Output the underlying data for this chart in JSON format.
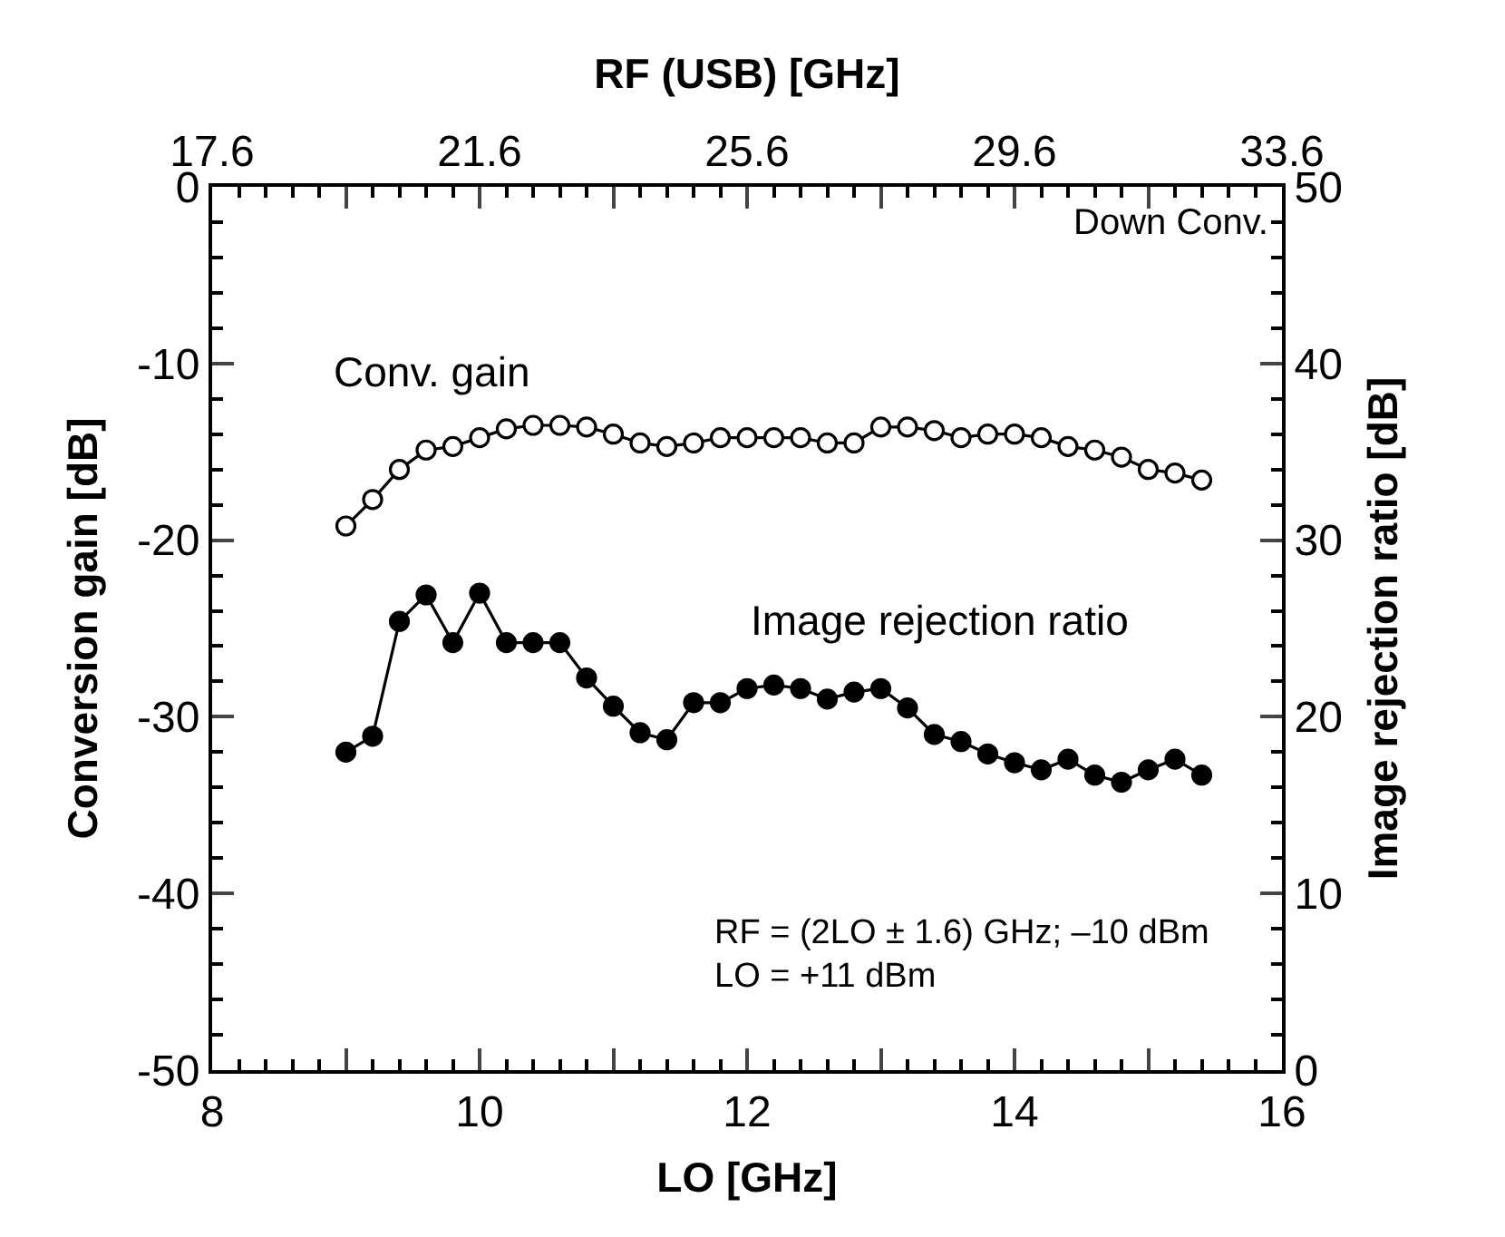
{
  "chart_data": {
    "type": "line",
    "xlabel": "LO [GHz]",
    "ylabel": "Conversion gain [dB]",
    "y2label": "Image rejection ratio [dB]",
    "x2label": "RF (USB) [GHz]",
    "x": [
      9.0,
      9.2,
      9.4,
      9.6,
      9.8,
      10.0,
      10.2,
      10.4,
      10.6,
      10.8,
      11.0,
      11.2,
      11.4,
      11.6,
      11.8,
      12.0,
      12.2,
      12.4,
      12.6,
      12.8,
      13.0,
      13.2,
      13.4,
      13.6,
      13.8,
      14.0,
      14.2,
      14.4,
      14.6,
      14.8,
      15.0,
      15.2,
      15.4
    ],
    "series": [
      {
        "color": "#000000",
        "marker": "circle-open",
        "values": [
          -19.2,
          -17.7,
          -16.0,
          -14.9,
          -14.7,
          -14.2,
          -13.7,
          -13.5,
          -13.5,
          -13.6,
          -14.0,
          -14.5,
          -14.7,
          -14.5,
          -14.2,
          -14.2,
          -14.2,
          -14.2,
          -14.5,
          -14.5,
          -13.6,
          -13.6,
          -13.8,
          -14.2,
          -14.0,
          -14.0,
          -14.2,
          -14.7,
          -14.9,
          -15.3,
          -16.0,
          -16.2,
          -16.6
        ]
      },
      {
        "color": "#000000",
        "marker": "circle",
        "axis": "y2",
        "values": [
          18.0,
          18.9,
          25.4,
          26.9,
          24.2,
          27.0,
          24.2,
          24.2,
          24.2,
          22.2,
          20.6,
          19.1,
          18.7,
          20.8,
          20.8,
          21.6,
          21.8,
          21.6,
          21.0,
          21.4,
          21.6,
          20.5,
          19.0,
          18.6,
          17.9,
          17.4,
          17.0,
          17.6,
          16.7,
          16.3,
          17.0,
          17.6,
          16.7
        ]
      }
    ],
    "xlim": [
      8,
      16
    ],
    "xticks": [
      8,
      {
        "value": 9,
        "label": null
      },
      10,
      {
        "value": 11,
        "label": null
      },
      12,
      {
        "value": 13,
        "label": null
      },
      14,
      {
        "value": 15,
        "label": null
      },
      16
    ],
    "x2lim": [
      17.6,
      33.6
    ],
    "x2ticks": [
      17.6,
      {
        "value": 19.6,
        "label": null
      },
      21.6,
      {
        "value": 23.6,
        "label": null
      },
      25.6,
      {
        "value": 27.6,
        "label": null
      },
      29.6,
      {
        "value": 31.6,
        "label": null
      },
      33.6
    ],
    "ylim": [
      -50,
      0
    ],
    "yticks": [
      -50,
      -40,
      -30,
      -20,
      -10,
      0
    ],
    "y2lim": [
      0,
      50
    ],
    "y2ticks": [
      0,
      10,
      20,
      30,
      40,
      50
    ],
    "line_style": "solid",
    "annotations": [
      "Conv. gain",
      "Image rejection ratio",
      "Down Conv.",
      "RF = (2LO ± 1.6) GHz; –10 dBm",
      "LO = +11 dBm"
    ]
  }
}
